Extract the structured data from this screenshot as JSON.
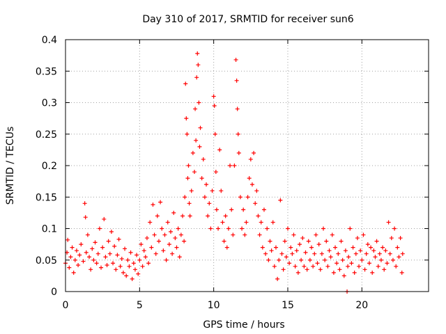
{
  "chart_data": {
    "type": "scatter",
    "title": "Day 310 of 2017, SRMTID for receiver sun6",
    "xlabel": "GPS time / hours",
    "ylabel": "SRMTID / TECUs",
    "xlim": [
      0,
      24.5
    ],
    "ylim": [
      0,
      0.4
    ],
    "x_ticks": [
      0,
      5,
      10,
      15,
      20
    ],
    "x_tick_labels": [
      "0",
      "5",
      "10",
      "15",
      "20"
    ],
    "y_ticks": [
      0,
      0.05,
      0.1,
      0.15,
      0.2,
      0.25,
      0.3,
      0.35,
      0.4
    ],
    "y_tick_labels": [
      "0",
      "0.05",
      "0.1",
      "0.15",
      "0.2",
      "0.25",
      "0.3",
      "0.35",
      "0.4"
    ],
    "grid": true,
    "marker": "+",
    "color": "#ff0000",
    "series": [
      {
        "name": "SRMTID",
        "points": [
          [
            0.0,
            0.045
          ],
          [
            0.1,
            0.062
          ],
          [
            0.15,
            0.082
          ],
          [
            0.25,
            0.038
          ],
          [
            0.35,
            0.055
          ],
          [
            0.45,
            0.07
          ],
          [
            0.55,
            0.03
          ],
          [
            0.65,
            0.05
          ],
          [
            0.75,
            0.065
          ],
          [
            0.85,
            0.042
          ],
          [
            0.95,
            0.058
          ],
          [
            1.05,
            0.075
          ],
          [
            1.2,
            0.048
          ],
          [
            1.3,
            0.14
          ],
          [
            1.35,
            0.118
          ],
          [
            1.4,
            0.062
          ],
          [
            1.5,
            0.09
          ],
          [
            1.6,
            0.055
          ],
          [
            1.7,
            0.035
          ],
          [
            1.8,
            0.068
          ],
          [
            1.9,
            0.05
          ],
          [
            2.0,
            0.078
          ],
          [
            2.1,
            0.045
          ],
          [
            2.2,
            0.06
          ],
          [
            2.3,
            0.1
          ],
          [
            2.4,
            0.038
          ],
          [
            2.5,
            0.07
          ],
          [
            2.6,
            0.115
          ],
          [
            2.7,
            0.055
          ],
          [
            2.8,
            0.042
          ],
          [
            2.9,
            0.08
          ],
          [
            3.0,
            0.06
          ],
          [
            3.1,
            0.095
          ],
          [
            3.2,
            0.045
          ],
          [
            3.3,
            0.072
          ],
          [
            3.4,
            0.035
          ],
          [
            3.5,
            0.058
          ],
          [
            3.6,
            0.083
          ],
          [
            3.7,
            0.04
          ],
          [
            3.8,
            0.052
          ],
          [
            3.9,
            0.03
          ],
          [
            4.0,
            0.068
          ],
          [
            4.1,
            0.025
          ],
          [
            4.2,
            0.05
          ],
          [
            4.3,
            0.04
          ],
          [
            4.4,
            0.062
          ],
          [
            4.5,
            0.02
          ],
          [
            4.6,
            0.045
          ],
          [
            4.7,
            0.035
          ],
          [
            4.8,
            0.058
          ],
          [
            4.9,
            0.028
          ],
          [
            5.0,
            0.05
          ],
          [
            5.1,
            0.075
          ],
          [
            5.2,
            0.04
          ],
          [
            5.3,
            0.065
          ],
          [
            5.4,
            0.055
          ],
          [
            5.5,
            0.085
          ],
          [
            5.6,
            0.045
          ],
          [
            5.7,
            0.11
          ],
          [
            5.8,
            0.07
          ],
          [
            5.9,
            0.138
          ],
          [
            6.0,
            0.09
          ],
          [
            6.1,
            0.06
          ],
          [
            6.2,
            0.12
          ],
          [
            6.3,
            0.08
          ],
          [
            6.4,
            0.142
          ],
          [
            6.5,
            0.1
          ],
          [
            6.6,
            0.065
          ],
          [
            6.7,
            0.09
          ],
          [
            6.8,
            0.05
          ],
          [
            6.9,
            0.11
          ],
          [
            7.0,
            0.075
          ],
          [
            7.1,
            0.095
          ],
          [
            7.2,
            0.06
          ],
          [
            7.3,
            0.125
          ],
          [
            7.4,
            0.085
          ],
          [
            7.5,
            0.07
          ],
          [
            7.6,
            0.1
          ],
          [
            7.7,
            0.055
          ],
          [
            7.8,
            0.09
          ],
          [
            7.9,
            0.12
          ],
          [
            8.0,
            0.08
          ],
          [
            8.05,
            0.15
          ],
          [
            8.1,
            0.33
          ],
          [
            8.15,
            0.275
          ],
          [
            8.2,
            0.25
          ],
          [
            8.25,
            0.18
          ],
          [
            8.3,
            0.2
          ],
          [
            8.35,
            0.14
          ],
          [
            8.4,
            0.12
          ],
          [
            8.5,
            0.16
          ],
          [
            8.6,
            0.22
          ],
          [
            8.7,
            0.19
          ],
          [
            8.75,
            0.29
          ],
          [
            8.8,
            0.24
          ],
          [
            8.85,
            0.34
          ],
          [
            8.9,
            0.378
          ],
          [
            8.95,
            0.36
          ],
          [
            9.0,
            0.3
          ],
          [
            9.05,
            0.23
          ],
          [
            9.1,
            0.26
          ],
          [
            9.2,
            0.18
          ],
          [
            9.3,
            0.21
          ],
          [
            9.4,
            0.15
          ],
          [
            9.5,
            0.17
          ],
          [
            9.6,
            0.12
          ],
          [
            9.7,
            0.14
          ],
          [
            9.8,
            0.1
          ],
          [
            9.9,
            0.16
          ],
          [
            10.0,
            0.31
          ],
          [
            10.05,
            0.295
          ],
          [
            10.1,
            0.25
          ],
          [
            10.15,
            0.19
          ],
          [
            10.2,
            0.13
          ],
          [
            10.3,
            0.1
          ],
          [
            10.4,
            0.225
          ],
          [
            10.5,
            0.16
          ],
          [
            10.6,
            0.11
          ],
          [
            10.7,
            0.08
          ],
          [
            10.8,
            0.12
          ],
          [
            10.9,
            0.07
          ],
          [
            11.0,
            0.1
          ],
          [
            11.1,
            0.2
          ],
          [
            11.2,
            0.13
          ],
          [
            11.3,
            0.09
          ],
          [
            11.4,
            0.2
          ],
          [
            11.5,
            0.368
          ],
          [
            11.55,
            0.335
          ],
          [
            11.6,
            0.29
          ],
          [
            11.65,
            0.25
          ],
          [
            11.7,
            0.22
          ],
          [
            11.8,
            0.15
          ],
          [
            11.9,
            0.1
          ],
          [
            12.0,
            0.13
          ],
          [
            12.1,
            0.09
          ],
          [
            12.2,
            0.11
          ],
          [
            12.3,
            0.15
          ],
          [
            12.4,
            0.18
          ],
          [
            12.5,
            0.21
          ],
          [
            12.6,
            0.17
          ],
          [
            12.7,
            0.22
          ],
          [
            12.8,
            0.14
          ],
          [
            12.9,
            0.16
          ],
          [
            13.0,
            0.12
          ],
          [
            13.1,
            0.09
          ],
          [
            13.2,
            0.11
          ],
          [
            13.3,
            0.07
          ],
          [
            13.4,
            0.13
          ],
          [
            13.5,
            0.06
          ],
          [
            13.6,
            0.1
          ],
          [
            13.7,
            0.05
          ],
          [
            13.8,
            0.08
          ],
          [
            13.9,
            0.065
          ],
          [
            14.0,
            0.11
          ],
          [
            14.1,
            0.04
          ],
          [
            14.2,
            0.07
          ],
          [
            14.3,
            0.02
          ],
          [
            14.4,
            0.05
          ],
          [
            14.5,
            0.145
          ],
          [
            14.6,
            0.06
          ],
          [
            14.7,
            0.035
          ],
          [
            14.8,
            0.08
          ],
          [
            14.9,
            0.055
          ],
          [
            15.0,
            0.1
          ],
          [
            15.1,
            0.045
          ],
          [
            15.2,
            0.07
          ],
          [
            15.3,
            0.06
          ],
          [
            15.4,
            0.09
          ],
          [
            15.5,
            0.04
          ],
          [
            15.6,
            0.065
          ],
          [
            15.7,
            0.03
          ],
          [
            15.8,
            0.075
          ],
          [
            15.9,
            0.05
          ],
          [
            16.0,
            0.085
          ],
          [
            16.1,
            0.04
          ],
          [
            16.2,
            0.062
          ],
          [
            16.3,
            0.035
          ],
          [
            16.4,
            0.08
          ],
          [
            16.5,
            0.05
          ],
          [
            16.6,
            0.07
          ],
          [
            16.7,
            0.04
          ],
          [
            16.8,
            0.06
          ],
          [
            16.9,
            0.09
          ],
          [
            17.0,
            0.045
          ],
          [
            17.1,
            0.075
          ],
          [
            17.2,
            0.035
          ],
          [
            17.3,
            0.06
          ],
          [
            17.4,
            0.1
          ],
          [
            17.5,
            0.05
          ],
          [
            17.6,
            0.08
          ],
          [
            17.7,
            0.04
          ],
          [
            17.8,
            0.065
          ],
          [
            17.9,
            0.055
          ],
          [
            18.0,
            0.09
          ],
          [
            18.1,
            0.03
          ],
          [
            18.2,
            0.07
          ],
          [
            18.3,
            0.045
          ],
          [
            18.4,
            0.06
          ],
          [
            18.5,
            0.035
          ],
          [
            18.6,
            0.08
          ],
          [
            18.7,
            0.05
          ],
          [
            18.8,
            0.025
          ],
          [
            18.9,
            0.065
          ],
          [
            19.0,
            0.0
          ],
          [
            19.05,
            0.04
          ],
          [
            19.1,
            0.055
          ],
          [
            19.2,
            0.1
          ],
          [
            19.3,
            0.045
          ],
          [
            19.4,
            0.07
          ],
          [
            19.5,
            0.03
          ],
          [
            19.6,
            0.06
          ],
          [
            19.7,
            0.085
          ],
          [
            19.8,
            0.04
          ],
          [
            19.9,
            0.065
          ],
          [
            20.0,
            0.05
          ],
          [
            20.1,
            0.09
          ],
          [
            20.2,
            0.035
          ],
          [
            20.3,
            0.06
          ],
          [
            20.4,
            0.075
          ],
          [
            20.5,
            0.045
          ],
          [
            20.6,
            0.07
          ],
          [
            20.7,
            0.03
          ],
          [
            20.8,
            0.065
          ],
          [
            20.9,
            0.055
          ],
          [
            21.0,
            0.08
          ],
          [
            21.1,
            0.04
          ],
          [
            21.2,
            0.06
          ],
          [
            21.3,
            0.05
          ],
          [
            21.4,
            0.07
          ],
          [
            21.5,
            0.035
          ],
          [
            21.6,
            0.065
          ],
          [
            21.7,
            0.045
          ],
          [
            21.8,
            0.11
          ],
          [
            21.9,
            0.06
          ],
          [
            22.0,
            0.085
          ],
          [
            22.1,
            0.05
          ],
          [
            22.2,
            0.1
          ],
          [
            22.3,
            0.04
          ],
          [
            22.4,
            0.07
          ],
          [
            22.5,
            0.055
          ],
          [
            22.6,
            0.085
          ],
          [
            22.7,
            0.03
          ],
          [
            22.75,
            0.06
          ]
        ]
      }
    ]
  }
}
